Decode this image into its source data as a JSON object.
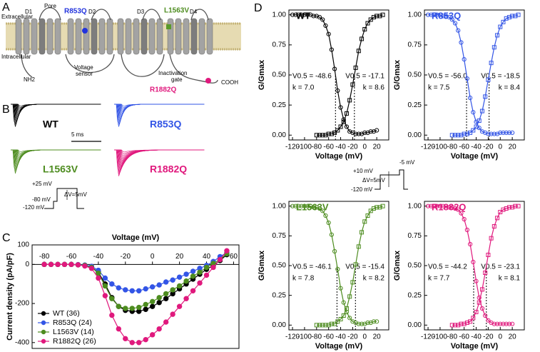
{
  "panel_labels": [
    "A",
    "B",
    "C",
    "D"
  ],
  "panel_a": {
    "extracellular": "Extracellular",
    "intracellular": "Intracellular",
    "domains": [
      "D1",
      "D2",
      "D3",
      "D4"
    ],
    "pore": "Pore",
    "mutations": [
      "R853Q",
      "L1563V",
      "R1882Q"
    ],
    "voltage_sensor": [
      "Voltage",
      "sensor"
    ],
    "inactivation_gate": [
      "Inactivation",
      "gate"
    ],
    "n_terminus": "NH2",
    "c_terminus": "COOH"
  },
  "panel_b": {
    "traces": [
      "WT",
      "R853Q",
      "L1563V",
      "R1882Q"
    ],
    "scale_bar": "5 ms",
    "protocol": [
      "+25 mV",
      "-80 mV",
      "-120 mV",
      "ΔV=5mV"
    ]
  },
  "panel_d_protocol": [
    "+10 mV",
    "-5 mV",
    "-120 mV",
    "ΔV=5mV"
  ],
  "chart_data": [
    {
      "type": "line",
      "xlabel": "Voltage (mV)",
      "ylabel": "Current density (pA/pF)",
      "x": [
        -80,
        -75,
        -70,
        -65,
        -60,
        -55,
        -50,
        -45,
        -40,
        -35,
        -30,
        -25,
        -20,
        -15,
        -10,
        -5,
        0,
        5,
        10,
        15,
        20,
        25,
        30,
        35,
        40,
        45,
        50,
        55
      ],
      "xlim": [
        -89,
        64
      ],
      "ylim": [
        -430,
        100
      ],
      "xticks": [
        -80,
        -60,
        -40,
        -20,
        0,
        20,
        40,
        60
      ],
      "yticks": [
        -400,
        -200,
        0,
        100
      ],
      "marker": "circle",
      "open_markers": false,
      "legend": "lower left",
      "series": [
        {
          "name": "WT (36)",
          "color": "#000000",
          "values": [
            0,
            0,
            0,
            0,
            0,
            -2,
            -5,
            -15,
            -40,
            -100,
            -170,
            -215,
            -235,
            -240,
            -240,
            -230,
            -215,
            -195,
            -175,
            -150,
            -125,
            -100,
            -75,
            -50,
            -25,
            -5,
            20,
            50
          ]
        },
        {
          "name": "R853Q (24)",
          "color": "#3355e6",
          "values": [
            0,
            0,
            0,
            0,
            0,
            -1,
            -3,
            -10,
            -30,
            -70,
            -100,
            -120,
            -130,
            -135,
            -135,
            -125,
            -115,
            -105,
            -90,
            -80,
            -65,
            -50,
            -35,
            -20,
            -5,
            15,
            40,
            60
          ]
        },
        {
          "name": "L1563V (14)",
          "color": "#4d8c1f",
          "values": [
            0,
            0,
            0,
            0,
            0,
            -2,
            -5,
            -15,
            -45,
            -110,
            -175,
            -215,
            -225,
            -225,
            -220,
            -205,
            -190,
            -170,
            -150,
            -130,
            -110,
            -85,
            -60,
            -40,
            -15,
            5,
            25,
            55
          ]
        },
        {
          "name": "R1882Q (26)",
          "color": "#e0197d",
          "values": [
            0,
            0,
            0,
            0,
            0,
            -2,
            -8,
            -20,
            -70,
            -160,
            -260,
            -330,
            -380,
            -400,
            -400,
            -385,
            -360,
            -330,
            -295,
            -255,
            -215,
            -175,
            -135,
            -95,
            -55,
            -15,
            25,
            70
          ]
        }
      ]
    },
    {
      "type": "line",
      "title": "WT",
      "title_color": "#000000",
      "xlabel": "Voltage (mV)",
      "ylabel": "G/Gmax",
      "xlim": [
        -126,
        40
      ],
      "ylim": [
        -0.04,
        1.04
      ],
      "xticks": [
        -120,
        -100,
        -80,
        -60,
        -40,
        -20,
        0,
        20
      ],
      "yticks": [
        {
          "value": 0,
          "label": "0.00"
        },
        {
          "value": 0.25,
          "label": "0.25"
        },
        {
          "value": 0.5,
          "label": "0.50"
        },
        {
          "value": 0.75,
          "label": "0.75"
        },
        {
          "value": 1,
          "label": "1.00"
        }
      ],
      "open_markers": true,
      "vlines": [
        -48.6,
        -17.1
      ],
      "annotations": [
        "V0.5 = -48.6",
        "k = 7.0",
        "V0.5 = -17.1",
        "k = 8.6"
      ],
      "series": [
        {
          "color": "#000000",
          "marker": "circle",
          "x": [
            -120,
            -115,
            -110,
            -105,
            -100,
            -95,
            -90,
            -85,
            -80,
            -75,
            -70,
            -65,
            -60,
            -55,
            -50,
            -45,
            -40,
            -35,
            -30,
            -25,
            -20,
            -15,
            -10,
            -5,
            0,
            5,
            10,
            15,
            20
          ],
          "values": [
            1,
            1,
            1,
            1,
            1,
            1,
            1,
            0.99,
            0.99,
            0.98,
            0.96,
            0.91,
            0.84,
            0.71,
            0.55,
            0.37,
            0.23,
            0.13,
            0.07,
            0.03,
            0.02,
            0.01,
            0.01,
            0.01,
            0.02,
            0.02,
            0.03,
            0.03,
            0.04
          ]
        },
        {
          "color": "#000000",
          "marker": "square",
          "x": [
            -80,
            -75,
            -70,
            -65,
            -60,
            -55,
            -50,
            -45,
            -40,
            -35,
            -30,
            -25,
            -20,
            -15,
            -10,
            -5,
            0,
            5,
            10,
            15,
            20,
            25,
            30
          ],
          "values": [
            0,
            0,
            0,
            0,
            0.01,
            0.01,
            0.02,
            0.04,
            0.07,
            0.11,
            0.18,
            0.29,
            0.42,
            0.56,
            0.7,
            0.8,
            0.88,
            0.93,
            0.96,
            0.98,
            0.99,
            0.99,
            1
          ]
        }
      ]
    },
    {
      "type": "line",
      "title": "R853Q",
      "title_color": "#3355e6",
      "xlabel": "Voltage (mV)",
      "ylabel": "G/Gmax",
      "xlim": [
        -126,
        40
      ],
      "ylim": [
        -0.04,
        1.04
      ],
      "xticks": [
        -120,
        -100,
        -80,
        -60,
        -40,
        -20,
        0,
        20
      ],
      "yticks": [
        {
          "value": 0,
          "label": "0.00"
        },
        {
          "value": 0.25,
          "label": "0.25"
        },
        {
          "value": 0.5,
          "label": "0.50"
        },
        {
          "value": 0.75,
          "label": "0.75"
        },
        {
          "value": 1,
          "label": "1.00"
        }
      ],
      "open_markers": true,
      "vlines": [
        -56.0,
        -18.5
      ],
      "annotations": [
        "V0.5 = -56.0",
        "k = 7.5",
        "V0.5 = -18.5",
        "k = 8.4"
      ],
      "series": [
        {
          "color": "#3355e6",
          "marker": "circle",
          "x": [
            -120,
            -115,
            -110,
            -105,
            -100,
            -95,
            -90,
            -85,
            -80,
            -75,
            -70,
            -65,
            -60,
            -55,
            -50,
            -45,
            -40,
            -35,
            -30,
            -25,
            -20,
            -15,
            -10,
            -5,
            0,
            5,
            10,
            15,
            20
          ],
          "values": [
            1,
            1,
            1,
            1,
            1,
            0.99,
            0.99,
            0.98,
            0.96,
            0.93,
            0.87,
            0.77,
            0.63,
            0.47,
            0.31,
            0.19,
            0.11,
            0.06,
            0.03,
            0.02,
            0.01,
            0.01,
            0.01,
            0.01,
            0.02,
            0.02,
            0.02,
            0.02,
            0.02
          ]
        },
        {
          "color": "#3355e6",
          "marker": "square",
          "x": [
            -80,
            -75,
            -70,
            -65,
            -60,
            -55,
            -50,
            -45,
            -40,
            -35,
            -30,
            -25,
            -20,
            -15,
            -10,
            -5,
            0,
            5,
            10,
            15,
            20,
            25,
            30
          ],
          "values": [
            0,
            0,
            0,
            0,
            0.01,
            0.01,
            0.02,
            0.04,
            0.07,
            0.12,
            0.2,
            0.32,
            0.46,
            0.6,
            0.73,
            0.83,
            0.9,
            0.94,
            0.97,
            0.98,
            0.99,
            0.99,
            1
          ]
        }
      ]
    },
    {
      "type": "line",
      "title": "L1563V",
      "title_color": "#4d8c1f",
      "xlabel": "Voltage (mV)",
      "ylabel": "G/Gmax",
      "xlim": [
        -126,
        40
      ],
      "ylim": [
        -0.04,
        1.04
      ],
      "xticks": [
        -120,
        -100,
        -80,
        -60,
        -40,
        -20,
        0,
        20
      ],
      "yticks": [
        {
          "value": 0,
          "label": "0.00"
        },
        {
          "value": 0.25,
          "label": "0.25"
        },
        {
          "value": 0.5,
          "label": "0.50"
        },
        {
          "value": 0.75,
          "label": "0.75"
        },
        {
          "value": 1,
          "label": "1.00"
        }
      ],
      "open_markers": true,
      "vlines": [
        -46.1,
        -15.4
      ],
      "annotations": [
        "V0.5 = -46.1",
        "k = 7.8",
        "V0.5 = -15.4",
        "k = 8.2"
      ],
      "series": [
        {
          "color": "#4d8c1f",
          "marker": "circle",
          "x": [
            -120,
            -115,
            -110,
            -105,
            -100,
            -95,
            -90,
            -85,
            -80,
            -75,
            -70,
            -65,
            -60,
            -55,
            -50,
            -45,
            -40,
            -35,
            -30,
            -25,
            -20,
            -15,
            -10,
            -5,
            0,
            5,
            10,
            15,
            20
          ],
          "values": [
            1,
            1,
            1,
            1,
            1,
            1,
            1,
            0.99,
            0.99,
            0.98,
            0.96,
            0.92,
            0.86,
            0.76,
            0.62,
            0.47,
            0.31,
            0.19,
            0.11,
            0.06,
            0.03,
            0.02,
            0.01,
            0.01,
            0.01,
            0.02,
            0.02,
            0.03,
            0.03
          ]
        },
        {
          "color": "#4d8c1f",
          "marker": "square",
          "x": [
            -80,
            -75,
            -70,
            -65,
            -60,
            -55,
            -50,
            -45,
            -40,
            -35,
            -30,
            -25,
            -20,
            -15,
            -10,
            -5,
            0,
            5,
            10,
            15,
            20,
            25,
            30
          ],
          "values": [
            0,
            0,
            0,
            0,
            0,
            0.01,
            0.01,
            0.03,
            0.05,
            0.08,
            0.14,
            0.24,
            0.36,
            0.51,
            0.66,
            0.78,
            0.87,
            0.92,
            0.96,
            0.98,
            0.99,
            0.99,
            1
          ]
        }
      ]
    },
    {
      "type": "line",
      "title": "R1882Q",
      "title_color": "#e0197d",
      "xlabel": "Voltage (mV)",
      "ylabel": "G/Gmax",
      "xlim": [
        -126,
        40
      ],
      "ylim": [
        -0.04,
        1.04
      ],
      "xticks": [
        -120,
        -100,
        -80,
        -60,
        -40,
        -20,
        0,
        20
      ],
      "yticks": [
        {
          "value": 0,
          "label": "0.00"
        },
        {
          "value": 0.25,
          "label": "0.25"
        },
        {
          "value": 0.5,
          "label": "0.50"
        },
        {
          "value": 0.75,
          "label": "0.75"
        },
        {
          "value": 1,
          "label": "1.00"
        }
      ],
      "open_markers": true,
      "vlines": [
        -44.2,
        -23.1
      ],
      "annotations": [
        "V0.5 = -44.2",
        "k = 7.7",
        "V0.5 = -23.1",
        "k = 8.1"
      ],
      "series": [
        {
          "color": "#e0197d",
          "marker": "circle",
          "x": [
            -120,
            -115,
            -110,
            -105,
            -100,
            -95,
            -90,
            -85,
            -80,
            -75,
            -70,
            -65,
            -60,
            -55,
            -50,
            -45,
            -40,
            -35,
            -30,
            -25,
            -20,
            -15,
            -10,
            -5,
            0,
            5,
            10,
            15,
            20
          ],
          "values": [
            1,
            1,
            1,
            1,
            1,
            1,
            1,
            0.99,
            0.99,
            0.98,
            0.97,
            0.94,
            0.89,
            0.8,
            0.68,
            0.53,
            0.37,
            0.23,
            0.14,
            0.08,
            0.04,
            0.02,
            0.01,
            0.01,
            0.01,
            0.01,
            0.01,
            0.01,
            0.01
          ]
        },
        {
          "color": "#e0197d",
          "marker": "square",
          "x": [
            -80,
            -75,
            -70,
            -65,
            -60,
            -55,
            -50,
            -45,
            -40,
            -35,
            -30,
            -25,
            -20,
            -15,
            -10,
            -5,
            0,
            5,
            10,
            15,
            20,
            25,
            30
          ],
          "values": [
            0,
            0,
            0,
            0.01,
            0.01,
            0.02,
            0.03,
            0.06,
            0.11,
            0.19,
            0.3,
            0.44,
            0.59,
            0.73,
            0.83,
            0.9,
            0.95,
            0.97,
            0.98,
            0.99,
            0.99,
            1,
            1
          ]
        }
      ]
    }
  ]
}
